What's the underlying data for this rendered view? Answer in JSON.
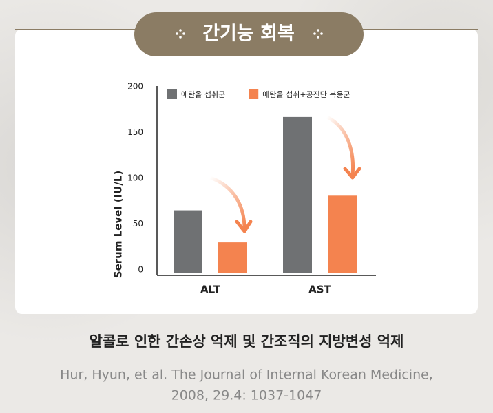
{
  "badge": "간기능 회복",
  "chart_data": {
    "type": "bar",
    "y_label": "Serum Level (IU/L)",
    "categories": [
      "ALT",
      "AST"
    ],
    "series": [
      {
        "name": "에탄올 섭취군",
        "color": "#6f7173",
        "values": [
          68,
          170
        ]
      },
      {
        "name": "에탄올 섭취+공진단 복용군",
        "color": "#f4834f",
        "values": [
          33,
          84
        ]
      }
    ],
    "ylim": [
      0,
      200
    ],
    "yticks": [
      0,
      50,
      100,
      150,
      200
    ],
    "grid": false,
    "legend": "top"
  },
  "caption": "알콜로 인한 간손상 억제 및 간조직의 지방변성 억제",
  "citation": [
    "Hur, Hyun, et al. The Journal of Internal Korean Medicine,",
    "2008, 29.4: 1037-1047"
  ]
}
